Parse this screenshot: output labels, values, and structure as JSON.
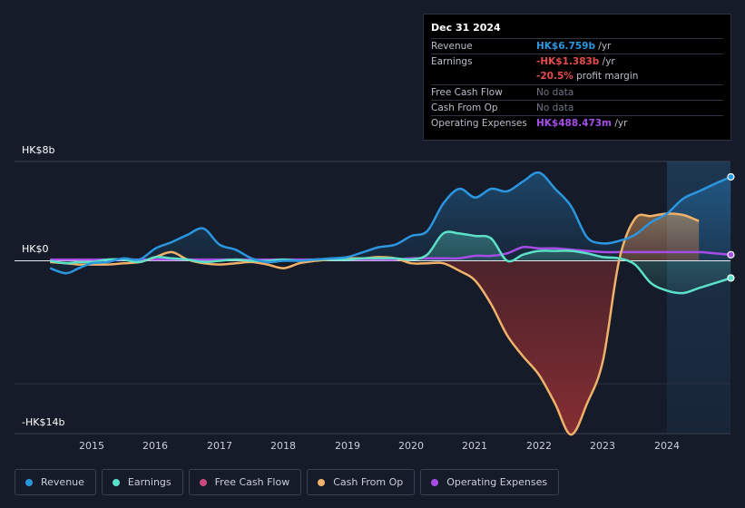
{
  "tooltip": {
    "date": "Dec 31 2024",
    "rows": {
      "revenue": {
        "label": "Revenue",
        "value": "HK$6.759b",
        "unit": " /yr"
      },
      "earnings": {
        "label": "Earnings",
        "value": "-HK$1.383b",
        "unit": " /yr"
      },
      "margin": {
        "value": "-20.5%",
        "text": " profit margin"
      },
      "fcf": {
        "label": "Free Cash Flow",
        "value": "No data"
      },
      "cfo": {
        "label": "Cash From Op",
        "value": "No data"
      },
      "opex": {
        "label": "Operating Expenses",
        "value": "HK$488.473m",
        "unit": " /yr"
      }
    }
  },
  "colors": {
    "background": "#151b28",
    "revenue": "#2b96e0",
    "earnings": "#5ce0c8",
    "free_cash_flow": "#c94a7a",
    "cash_from_op": "#f0b26a",
    "operating_expenses": "#a64de8",
    "negative_fill": "#7a2a2e"
  },
  "legend": [
    {
      "key": "revenue",
      "label": "Revenue",
      "color": "#2b96e0"
    },
    {
      "key": "earnings",
      "label": "Earnings",
      "color": "#5ce0c8"
    },
    {
      "key": "free_cash_flow",
      "label": "Free Cash Flow",
      "color": "#c94a7a"
    },
    {
      "key": "cash_from_op",
      "label": "Cash From Op",
      "color": "#f0b26a"
    },
    {
      "key": "operating_expenses",
      "label": "Operating Expenses",
      "color": "#a64de8"
    }
  ],
  "chart_data": {
    "type": "line",
    "unit": "HK$ billions",
    "y_tick_labels": [
      "HK$8b",
      "HK$0",
      "-HK$14b"
    ],
    "ylim": [
      -14,
      8
    ],
    "xlim": [
      2014.35,
      2025.0
    ],
    "x_tick_labels": [
      "2015",
      "2016",
      "2017",
      "2018",
      "2019",
      "2020",
      "2021",
      "2022",
      "2023",
      "2024"
    ],
    "highlight_region": [
      2024.0,
      2025.0
    ],
    "series": [
      {
        "name": "Revenue",
        "key": "revenue",
        "x": [
          2014.35,
          2014.6,
          2014.8,
          2015.0,
          2015.25,
          2015.5,
          2015.75,
          2016.0,
          2016.25,
          2016.5,
          2016.75,
          2017.0,
          2017.25,
          2017.5,
          2017.75,
          2018.0,
          2018.25,
          2018.5,
          2018.75,
          2019.0,
          2019.25,
          2019.5,
          2019.75,
          2020.0,
          2020.25,
          2020.5,
          2020.75,
          2021.0,
          2021.25,
          2021.5,
          2021.75,
          2022.0,
          2022.25,
          2022.5,
          2022.75,
          2023.0,
          2023.25,
          2023.5,
          2023.75,
          2024.0,
          2024.25,
          2024.5,
          2024.75,
          2025.0
        ],
        "y": [
          -0.6,
          -1.0,
          -0.6,
          -0.2,
          -0.1,
          0.2,
          0.1,
          1.0,
          1.5,
          2.1,
          2.6,
          1.3,
          0.9,
          0.2,
          -0.1,
          0.0,
          0.0,
          0.1,
          0.2,
          0.3,
          0.7,
          1.1,
          1.3,
          2.0,
          2.4,
          4.6,
          5.8,
          5.1,
          5.8,
          5.6,
          6.4,
          7.1,
          5.8,
          4.4,
          1.9,
          1.4,
          1.6,
          2.1,
          3.1,
          3.8,
          5.0,
          5.6,
          6.2,
          6.76
        ]
      },
      {
        "name": "Earnings",
        "key": "earnings",
        "x": [
          2014.35,
          2014.6,
          2014.8,
          2015.0,
          2015.25,
          2015.5,
          2015.75,
          2016.0,
          2016.25,
          2016.5,
          2016.75,
          2017.0,
          2017.25,
          2017.5,
          2017.75,
          2018.0,
          2018.25,
          2018.5,
          2018.75,
          2019.0,
          2019.25,
          2019.5,
          2019.75,
          2020.0,
          2020.25,
          2020.5,
          2020.75,
          2021.0,
          2021.25,
          2021.5,
          2021.75,
          2022.0,
          2022.25,
          2022.5,
          2022.75,
          2023.0,
          2023.25,
          2023.5,
          2023.75,
          2024.0,
          2024.25,
          2024.5,
          2024.75,
          2025.0
        ],
        "y": [
          0.0,
          -0.2,
          -0.1,
          -0.1,
          0.1,
          0.1,
          -0.1,
          0.3,
          0.2,
          0.1,
          -0.1,
          0.0,
          0.1,
          0.0,
          0.0,
          0.1,
          0.0,
          0.1,
          0.1,
          0.1,
          0.2,
          0.2,
          0.2,
          0.1,
          0.5,
          2.2,
          2.2,
          2.0,
          1.8,
          0.0,
          0.5,
          0.8,
          0.8,
          0.8,
          0.6,
          0.3,
          0.2,
          -0.3,
          -1.8,
          -2.4,
          -2.6,
          -2.2,
          -1.8,
          -1.383
        ]
      },
      {
        "name": "Cash From Op",
        "key": "cash_from_op",
        "x": [
          2014.35,
          2014.6,
          2014.8,
          2015.0,
          2015.25,
          2015.5,
          2015.75,
          2016.0,
          2016.25,
          2016.5,
          2016.75,
          2017.0,
          2017.25,
          2017.5,
          2017.75,
          2018.0,
          2018.25,
          2018.5,
          2018.75,
          2019.0,
          2019.25,
          2019.5,
          2019.75,
          2020.0,
          2020.25,
          2020.5,
          2020.75,
          2021.0,
          2021.25,
          2021.5,
          2021.75,
          2022.0,
          2022.25,
          2022.5,
          2022.75,
          2023.0,
          2023.25,
          2023.5,
          2023.75,
          2024.0,
          2024.25,
          2024.5
        ],
        "y": [
          -0.1,
          -0.2,
          -0.3,
          -0.3,
          -0.3,
          -0.2,
          -0.1,
          0.3,
          0.7,
          0.1,
          -0.2,
          -0.3,
          -0.2,
          -0.1,
          -0.3,
          -0.6,
          -0.2,
          0.0,
          0.1,
          0.2,
          0.2,
          0.3,
          0.2,
          -0.2,
          -0.2,
          -0.2,
          -0.8,
          -1.6,
          -3.5,
          -6.0,
          -7.7,
          -9.2,
          -11.5,
          -14.0,
          -11.5,
          -8.0,
          0.0,
          3.4,
          3.6,
          3.8,
          3.7,
          3.2
        ]
      },
      {
        "name": "Operating Expenses",
        "key": "operating_expenses",
        "x": [
          2014.35,
          2014.6,
          2014.8,
          2015.0,
          2015.25,
          2015.5,
          2015.75,
          2016.0,
          2016.25,
          2016.5,
          2016.75,
          2017.0,
          2017.25,
          2017.5,
          2017.75,
          2018.0,
          2018.25,
          2018.5,
          2018.75,
          2019.0,
          2019.25,
          2019.5,
          2019.75,
          2020.0,
          2020.25,
          2020.5,
          2020.75,
          2021.0,
          2021.25,
          2021.5,
          2021.75,
          2022.0,
          2022.25,
          2022.5,
          2022.75,
          2023.0,
          2023.25,
          2023.5,
          2023.75,
          2024.0,
          2024.25,
          2024.5,
          2024.75,
          2025.0
        ],
        "y": [
          0.1,
          0.1,
          0.1,
          0.1,
          0.1,
          0.1,
          0.1,
          0.1,
          0.1,
          0.1,
          0.1,
          0.1,
          0.1,
          0.1,
          0.1,
          0.1,
          0.1,
          0.1,
          0.1,
          0.1,
          0.1,
          0.1,
          0.1,
          0.2,
          0.2,
          0.2,
          0.2,
          0.4,
          0.4,
          0.6,
          1.1,
          1.0,
          1.0,
          0.9,
          0.8,
          0.7,
          0.7,
          0.7,
          0.7,
          0.7,
          0.7,
          0.7,
          0.6,
          0.488
        ]
      }
    ]
  }
}
